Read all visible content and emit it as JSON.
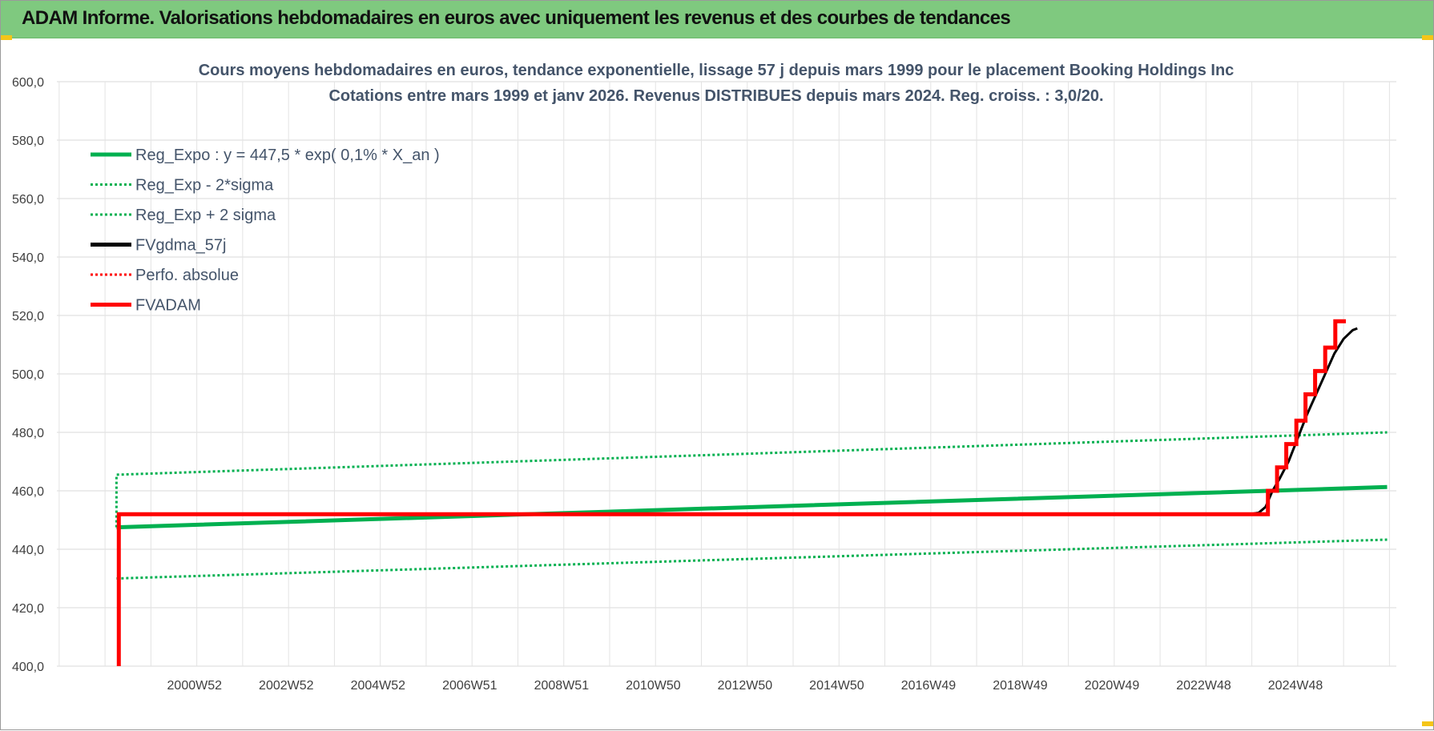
{
  "banner": {
    "title": "ADAM Informe. Valorisations hebdomadaires en euros avec uniquement les revenus et des courbes de tendances"
  },
  "chart_data": {
    "type": "line",
    "title": [
      "Cours moyens hebdomadaires en euros, tendance exponentielle, lissage 57 j depuis mars 1999 pour le placement Booking Holdings Inc",
      "Cotations entre mars 1999 et janv 2026. Revenus DISTRIBUES depuis mars 2024. Reg. croiss. : 3,0/20."
    ],
    "xlabel": "",
    "ylabel": "",
    "ylim": [
      400,
      600
    ],
    "yticks": [
      "400,0",
      "420,0",
      "440,0",
      "460,0",
      "480,0",
      "500,0",
      "520,0",
      "540,0",
      "560,0",
      "580,0",
      "600,0"
    ],
    "xlim": [
      1997.9,
      2027.1
    ],
    "xticks": [
      {
        "x": 2000.9,
        "label": "2000W52"
      },
      {
        "x": 2002.9,
        "label": "2002W52"
      },
      {
        "x": 2004.9,
        "label": "2004W52"
      },
      {
        "x": 2006.9,
        "label": "2006W51"
      },
      {
        "x": 2008.9,
        "label": "2008W51"
      },
      {
        "x": 2010.9,
        "label": "2010W50"
      },
      {
        "x": 2012.9,
        "label": "2012W50"
      },
      {
        "x": 2014.9,
        "label": "2014W50"
      },
      {
        "x": 2016.9,
        "label": "2016W49"
      },
      {
        "x": 2018.9,
        "label": "2018W49"
      },
      {
        "x": 2020.9,
        "label": "2020W49"
      },
      {
        "x": 2022.9,
        "label": "2022W48"
      },
      {
        "x": 2024.9,
        "label": "2024W48"
      }
    ],
    "grid": true,
    "legend_position": "top-left",
    "series": [
      {
        "name": "Reg_Expo : y = 447,5 * exp( 0,1% *  X_an )",
        "color": "#00b050",
        "style": "solid",
        "points": [
          [
            1999.2,
            447.5
          ],
          [
            2012.6,
            454.2
          ],
          [
            2026.9,
            461.3
          ]
        ]
      },
      {
        "name": "Reg_Exp - 2*sigma",
        "color": "#00b050",
        "style": "dotted",
        "points": [
          [
            1999.2,
            430.0
          ],
          [
            2012.6,
            436.5
          ],
          [
            2026.9,
            443.3
          ]
        ]
      },
      {
        "name": "Reg_Exp + 2 sigma",
        "color": "#00b050",
        "style": "dotted",
        "points": [
          [
            1999.2,
            465.5
          ],
          [
            2012.6,
            472.5
          ],
          [
            2026.9,
            480.0
          ]
        ]
      },
      {
        "name": "FVgdma_57j",
        "color": "#000000",
        "style": "solid",
        "points": [
          [
            2023.9,
            452.0
          ],
          [
            2024.1,
            452.5
          ],
          [
            2024.25,
            454.5
          ],
          [
            2024.4,
            460.0
          ],
          [
            2024.55,
            464.0
          ],
          [
            2024.75,
            470.0
          ],
          [
            2024.95,
            478.0
          ],
          [
            2025.15,
            486.0
          ],
          [
            2025.35,
            493.0
          ],
          [
            2025.55,
            500.0
          ],
          [
            2025.75,
            507.0
          ],
          [
            2025.95,
            512.0
          ],
          [
            2026.15,
            515.0
          ],
          [
            2026.25,
            515.6
          ]
        ]
      },
      {
        "name": "Perfo. absolue",
        "color": "#ff0000",
        "style": "dotted",
        "points": []
      },
      {
        "name": "FVADAM",
        "color": "#ff0000",
        "style": "solid",
        "points": [
          [
            1999.25,
            400.0
          ],
          [
            1999.25,
            452.0
          ],
          [
            2024.3,
            452.0
          ],
          [
            2024.3,
            460.0
          ],
          [
            2024.5,
            460.0
          ],
          [
            2024.5,
            468.0
          ],
          [
            2024.7,
            468.0
          ],
          [
            2024.7,
            476.0
          ],
          [
            2024.92,
            476.0
          ],
          [
            2024.92,
            484.0
          ],
          [
            2025.12,
            484.0
          ],
          [
            2025.12,
            493.0
          ],
          [
            2025.33,
            493.0
          ],
          [
            2025.33,
            501.0
          ],
          [
            2025.55,
            501.0
          ],
          [
            2025.55,
            509.0
          ],
          [
            2025.77,
            509.0
          ],
          [
            2025.77,
            518.0
          ],
          [
            2026.0,
            518.0
          ]
        ]
      }
    ]
  }
}
